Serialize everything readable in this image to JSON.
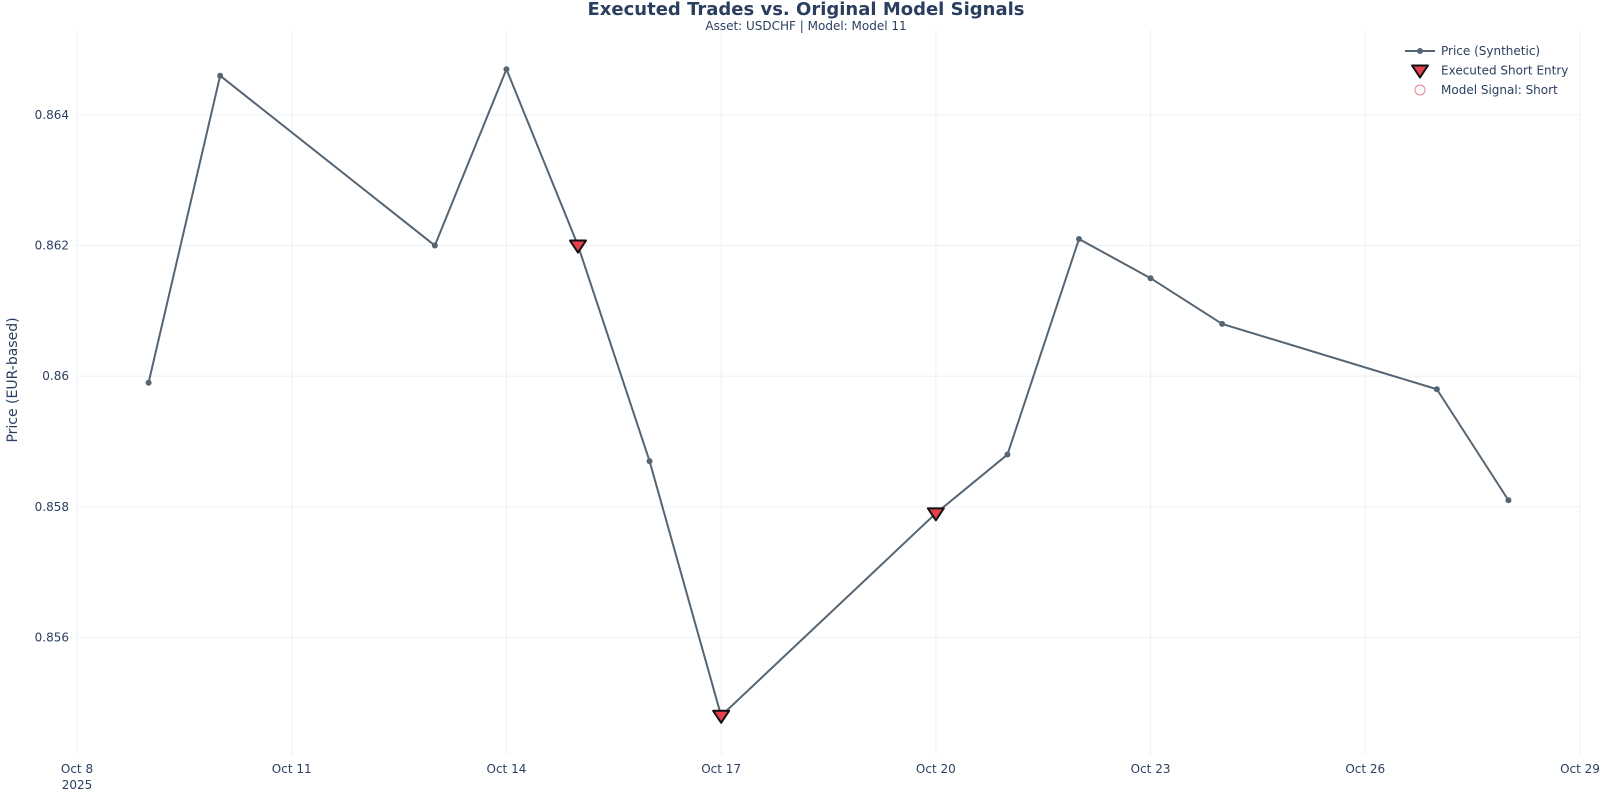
{
  "chart_data": {
    "type": "line",
    "title": "Executed Trades vs. Original Model Signals",
    "subtitle": "Asset: USDCHF | Model: Model 11",
    "xlabel": "",
    "ylabel": "Price (EUR-based)",
    "xlim": [
      "2025-10-08",
      "2025-10-29"
    ],
    "ylim": [
      0.8542,
      0.8653
    ],
    "x_ticks": [
      {
        "date": "2025-10-08",
        "label": "Oct 8",
        "sublabel": "2025"
      },
      {
        "date": "2025-10-11",
        "label": "Oct 11"
      },
      {
        "date": "2025-10-14",
        "label": "Oct 14"
      },
      {
        "date": "2025-10-17",
        "label": "Oct 17"
      },
      {
        "date": "2025-10-20",
        "label": "Oct 20"
      },
      {
        "date": "2025-10-23",
        "label": "Oct 23"
      },
      {
        "date": "2025-10-26",
        "label": "Oct 26"
      },
      {
        "date": "2025-10-29",
        "label": "Oct 29"
      }
    ],
    "y_ticks": [
      {
        "value": 0.856,
        "label": "0.856"
      },
      {
        "value": 0.858,
        "label": "0.858"
      },
      {
        "value": 0.86,
        "label": "0.86"
      },
      {
        "value": 0.862,
        "label": "0.862"
      },
      {
        "value": 0.864,
        "label": "0.864"
      }
    ],
    "grid": true,
    "legend_position": "top-right",
    "series": [
      {
        "name": "Price (Synthetic)",
        "kind": "line+markers",
        "color": "#566573",
        "points": [
          {
            "x": "2025-10-09",
            "y": 0.8599
          },
          {
            "x": "2025-10-10",
            "y": 0.8646
          },
          {
            "x": "2025-10-13",
            "y": 0.862
          },
          {
            "x": "2025-10-14",
            "y": 0.8647
          },
          {
            "x": "2025-10-15",
            "y": 0.862
          },
          {
            "x": "2025-10-16",
            "y": 0.8587
          },
          {
            "x": "2025-10-17",
            "y": 0.8548
          },
          {
            "x": "2025-10-20",
            "y": 0.8579
          },
          {
            "x": "2025-10-21",
            "y": 0.8588
          },
          {
            "x": "2025-10-22",
            "y": 0.8621
          },
          {
            "x": "2025-10-23",
            "y": 0.8615
          },
          {
            "x": "2025-10-24",
            "y": 0.8608
          },
          {
            "x": "2025-10-27",
            "y": 0.8598
          },
          {
            "x": "2025-10-28",
            "y": 0.8581
          }
        ]
      },
      {
        "name": "Executed Short Entry",
        "kind": "triangle-down",
        "color": "#e8404f",
        "outline": "#111111",
        "points": [
          {
            "x": "2025-10-15",
            "y": 0.862
          },
          {
            "x": "2025-10-17",
            "y": 0.8548
          },
          {
            "x": "2025-10-20",
            "y": 0.8579
          }
        ]
      },
      {
        "name": "Model Signal: Short",
        "kind": "circle-open",
        "color": "#f08090",
        "points": []
      }
    ]
  }
}
